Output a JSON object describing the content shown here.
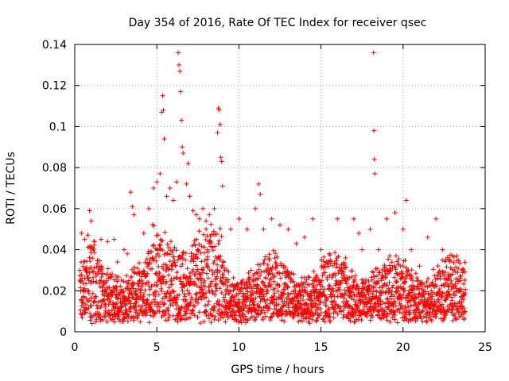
{
  "chart_data": {
    "type": "scatter",
    "title": "Day 354 of 2016, Rate Of TEC Index for receiver qsec",
    "xlabel": "GPS time / hours",
    "ylabel": "ROTI / TECUs",
    "xlim": [
      0,
      25
    ],
    "ylim": [
      0,
      0.14
    ],
    "x_ticks": [
      "0",
      "5",
      "10",
      "15",
      "20",
      "25"
    ],
    "y_ticks": [
      "0",
      "0.02",
      "0.04",
      "0.06",
      "0.08",
      "0.1",
      "0.12",
      "0.14"
    ],
    "x_tick_values": [
      0,
      5,
      10,
      15,
      20,
      25
    ],
    "y_tick_values": [
      0,
      0.02,
      0.04,
      0.06,
      0.08,
      0.1,
      0.12,
      0.14
    ],
    "grid": true,
    "marker": "+",
    "series": [
      {
        "name": "ROTI",
        "color": "#ff0000",
        "points": [
          [
            0.4,
            0.048
          ],
          [
            0.6,
            0.045
          ],
          [
            0.9,
            0.059
          ],
          [
            1.0,
            0.054
          ],
          [
            1.2,
            0.044
          ],
          [
            1.6,
            0.045
          ],
          [
            2.0,
            0.044
          ],
          [
            2.4,
            0.045
          ],
          [
            2.6,
            0.034
          ],
          [
            3.0,
            0.04
          ],
          [
            3.2,
            0.038
          ],
          [
            3.4,
            0.068
          ],
          [
            3.5,
            0.061
          ],
          [
            3.6,
            0.057
          ],
          [
            4.2,
            0.048
          ],
          [
            4.5,
            0.06
          ],
          [
            4.8,
            0.07
          ],
          [
            5.0,
            0.073
          ],
          [
            5.2,
            0.077
          ],
          [
            5.3,
            0.107
          ],
          [
            5.35,
            0.115
          ],
          [
            5.4,
            0.108
          ],
          [
            5.45,
            0.094
          ],
          [
            5.6,
            0.066
          ],
          [
            5.8,
            0.07
          ],
          [
            6.0,
            0.064
          ],
          [
            6.2,
            0.073
          ],
          [
            6.3,
            0.136
          ],
          [
            6.35,
            0.13
          ],
          [
            6.4,
            0.127
          ],
          [
            6.45,
            0.117
          ],
          [
            6.5,
            0.103
          ],
          [
            6.55,
            0.09
          ],
          [
            6.6,
            0.087
          ],
          [
            6.8,
            0.072
          ],
          [
            6.9,
            0.082
          ],
          [
            7.0,
            0.066
          ],
          [
            7.2,
            0.059
          ],
          [
            7.4,
            0.057
          ],
          [
            7.6,
            0.055
          ],
          [
            7.8,
            0.06
          ],
          [
            8.0,
            0.054
          ],
          [
            8.2,
            0.057
          ],
          [
            8.5,
            0.06
          ],
          [
            8.7,
            0.097
          ],
          [
            8.75,
            0.109
          ],
          [
            8.8,
            0.108
          ],
          [
            8.85,
            0.101
          ],
          [
            8.9,
            0.085
          ],
          [
            8.95,
            0.083
          ],
          [
            9.0,
            0.071
          ],
          [
            9.5,
            0.05
          ],
          [
            10.0,
            0.055
          ],
          [
            10.5,
            0.05
          ],
          [
            11.0,
            0.06
          ],
          [
            11.2,
            0.072
          ],
          [
            11.3,
            0.067
          ],
          [
            11.5,
            0.05
          ],
          [
            12.0,
            0.055
          ],
          [
            12.5,
            0.052
          ],
          [
            13.0,
            0.05
          ],
          [
            13.5,
            0.043
          ],
          [
            14.0,
            0.046
          ],
          [
            14.5,
            0.055
          ],
          [
            15.0,
            0.04
          ],
          [
            15.5,
            0.038
          ],
          [
            16.0,
            0.055
          ],
          [
            16.5,
            0.036
          ],
          [
            17.0,
            0.055
          ],
          [
            17.3,
            0.048
          ],
          [
            17.5,
            0.04
          ],
          [
            18.0,
            0.05
          ],
          [
            18.2,
            0.136
          ],
          [
            18.22,
            0.098
          ],
          [
            18.25,
            0.084
          ],
          [
            18.28,
            0.077
          ],
          [
            18.5,
            0.04
          ],
          [
            19.0,
            0.055
          ],
          [
            19.5,
            0.058
          ],
          [
            20.0,
            0.05
          ],
          [
            20.2,
            0.064
          ],
          [
            20.5,
            0.04
          ],
          [
            21.0,
            0.032
          ],
          [
            21.5,
            0.046
          ],
          [
            22.0,
            0.055
          ],
          [
            22.4,
            0.04
          ],
          [
            22.6,
            0.035
          ],
          [
            23.0,
            0.028
          ],
          [
            23.5,
            0.026
          ]
        ]
      }
    ]
  }
}
